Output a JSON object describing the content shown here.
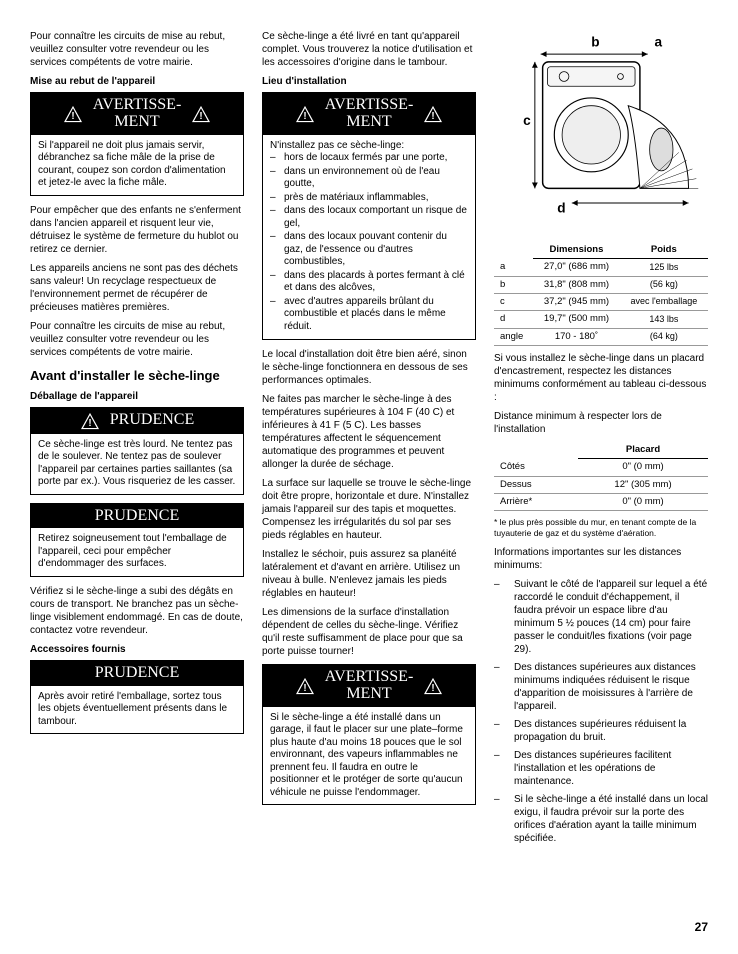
{
  "col1": {
    "intro": "Pour connaître les circuits de mise au rebut, veuillez consulter votre revendeur ou les services compétents de votre mairie.",
    "subhead1": "Mise au rebut de l'appareil",
    "warn1": {
      "title": "AVERTISSE-\nMENT",
      "body": "Si l'appareil ne doit plus jamais servir, débranchez sa fiche mâle de la prise de courant, coupez son cordon d'alimentation et jetez-le avec la fiche mâle."
    },
    "p2": "Pour empêcher que des enfants ne s'enferment dans l'ancien appareil et risquent leur vie, détruisez le système de fermeture du hublot ou retirez ce dernier.",
    "p3": "Les appareils anciens ne sont pas des déchets sans valeur! Un recyclage respectueux de l'environnement permet de récupérer de précieuses matières premières.",
    "p4": "Pour connaître les circuits de mise au rebut, veuillez consulter votre revendeur ou les services compétents de votre mairie.",
    "section": "Avant d'installer le sèche-linge",
    "subhead2": "Déballage de l'appareil",
    "warn2": {
      "title": "PRUDENCE",
      "body": "Ce sèche-linge est très lourd. Ne tentez pas de le soulever. Ne tentez pas de soulever l'appareil par certaines parties saillantes (sa porte par ex.). Vous risqueriez de les casser."
    },
    "warn3": {
      "title": "PRUDENCE",
      "body": "Retirez soigneusement tout l'emballage de l'appareil, ceci pour empêcher d'endommager des surfaces."
    },
    "p5": "Vérifiez si le sèche-linge a subi des dégâts en cours de transport. Ne branchez pas un sèche-linge visiblement endommagé. En cas de doute, contactez votre revendeur.",
    "subhead3": "Accessoires fournis",
    "warn4": {
      "title": "PRUDENCE",
      "body": "Après avoir retiré l'emballage, sortez tous les objets éventuellement présents dans le tambour."
    }
  },
  "col2": {
    "p1": "Ce sèche-linge a été livré en tant qu'appareil complet. Vous trouverez la notice d'utilisation et les accessoires d'origine dans le tambour.",
    "subhead1": "Lieu d'installation",
    "warn1": {
      "title": "AVERTISSE-\nMENT",
      "lead": "N'installez pas ce sèche-linge:",
      "items": [
        "hors de locaux fermés par une porte,",
        "dans un environnement où de l'eau goutte,",
        "près de matériaux inflammables,",
        "dans des locaux comportant un risque de gel,",
        "dans des locaux pouvant contenir du gaz, de l'essence ou d'autres combustibles,",
        "dans des placards à portes fermant à clé et dans des alcôves,",
        "avec d'autres appareils brûlant du combustible et placés dans le même réduit."
      ]
    },
    "p2": "Le local d'installation doit être bien aéré, sinon le sèche-linge fonctionnera en dessous de ses performances optimales.",
    "p3": "Ne faites pas marcher le sèche-linge à des températures supérieures à 104 F (40 C) et inférieures à 41 F (5 C). Les basses températures affectent le séquencement automatique des programmes et peuvent allonger la durée de séchage.",
    "p4": "La surface sur laquelle se trouve le sèche-linge doit être propre, horizontale et dure. N'installez jamais l'appareil sur des tapis et moquettes. Compensez les irrégularités du sol par ses pieds réglables en hauteur.",
    "p5": "Installez le séchoir, puis assurez sa planéité latéralement et d'avant en arrière. Utilisez un niveau à bulle. N'enlevez jamais les pieds réglables en hauteur!",
    "p6": "Les dimensions de la surface d'installation dépendent de celles du sèche-linge. Vérifiez qu'il reste suffisamment de place pour que sa porte puisse tourner!",
    "warn2": {
      "title": "AVERTISSE-\nMENT",
      "body": "Si le sèche-linge a été installé dans un garage, il faut le placer sur une plate–forme plus haute d'au moins 18 pouces que le sol environnant, des vapeurs inflammables ne prennent feu. Il faudra en outre le positionner et le protéger de sorte qu'aucun véhicule ne puisse l'endommager."
    }
  },
  "col3": {
    "diagram": {
      "labels": {
        "a": "a",
        "b": "b",
        "c": "c",
        "d": "d"
      }
    },
    "dimtable": {
      "h1": "Dimensions",
      "h2": "Poids",
      "rows": [
        {
          "k": "a",
          "dim": "27,0\" (686 mm)",
          "w": "125 lbs"
        },
        {
          "k": "b",
          "dim": "31,8\" (808 mm)",
          "w": "(56 kg)"
        },
        {
          "k": "c",
          "dim": "37,2\" (945 mm)",
          "w": "avec l'emballage"
        },
        {
          "k": "d",
          "dim": "19,7\" (500 mm)",
          "w": "143 lbs"
        },
        {
          "k": "angle",
          "dim": "170 - 180˚",
          "w": "(64 kg)"
        }
      ]
    },
    "p1": "Si vous installez le sèche-linge dans un placard d'encastrement, respectez les distances minimums conformément au tableau ci-dessous :",
    "p2": "Distance minimum à respecter lors de l'installation",
    "placardtable": {
      "h": "Placard",
      "rows": [
        {
          "k": "Côtés",
          "v": "0\" (0 mm)"
        },
        {
          "k": "Dessus",
          "v": "12\" (305 mm)"
        },
        {
          "k": "Arrière*",
          "v": "0\" (0 mm)"
        }
      ]
    },
    "note": "* le plus près possible du mur, en tenant compte de la tuyauterie de gaz et du système d'aération.",
    "p3": "Informations importantes sur les distances minimums:",
    "bullets": [
      "Suivant le côté de l'appareil sur lequel a été raccordé le conduit d'échappement, il faudra prévoir un espace libre d'au minimum 5 ½ pouces (14 cm) pour faire passer le conduit/les fixations (voir page 29).",
      "Des distances supérieures aux distances minimums indiquées réduisent le risque d'apparition de moisissures à l'arrière de l'appareil.",
      "Des distances supérieures réduisent la propagation du bruit.",
      "Des distances supérieures facilitent l'installation et les opérations de maintenance.",
      "Si le sèche-linge a été installé dans un local exigu, il faudra prévoir sur la porte des orifices d'aération ayant la taille minimum spécifiée."
    ]
  },
  "page": "27"
}
